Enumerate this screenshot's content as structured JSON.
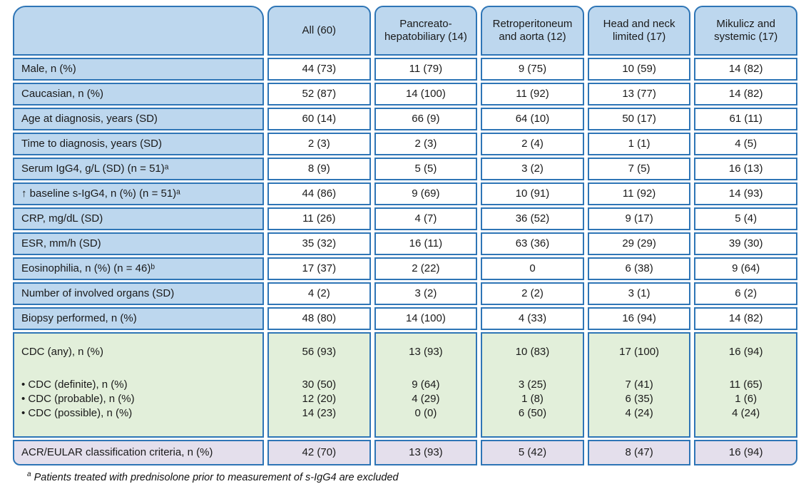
{
  "chart_data": {
    "type": "table",
    "columns": [
      "All (60)",
      "Pancreato-hepatobiliary (14)",
      "Retroperitoneum and aorta (12)",
      "Head and neck limited (17)",
      "Mikulicz and systemic (17)"
    ],
    "rows": [
      {
        "label": "Male, n (%)",
        "values": [
          "44 (73)",
          "11 (79)",
          "9 (75)",
          "10 (59)",
          "14 (82)"
        ]
      },
      {
        "label": "Caucasian, n (%)",
        "values": [
          "52 (87)",
          "14 (100)",
          "11 (92)",
          "13 (77)",
          "14 (82)"
        ]
      },
      {
        "label": "Age at diagnosis, years (SD)",
        "values": [
          "60 (14)",
          "66 (9)",
          "64 (10)",
          "50 (17)",
          "61 (11)"
        ]
      },
      {
        "label": "Time to diagnosis, years (SD)",
        "values": [
          "2 (3)",
          "2 (3)",
          "2 (4)",
          "1 (1)",
          "4 (5)"
        ]
      },
      {
        "label": "Serum IgG4, g/L (SD) (n = 51)ᵃ",
        "values": [
          "8 (9)",
          "5 (5)",
          "3 (2)",
          "7 (5)",
          "16 (13)"
        ]
      },
      {
        "label": "↑ baseline s-IgG4, n (%) (n = 51)ᵃ",
        "values": [
          "44 (86)",
          "9 (69)",
          "10 (91)",
          "11 (92)",
          "14 (93)"
        ]
      },
      {
        "label": "CRP, mg/dL (SD)",
        "values": [
          "11 (26)",
          "4 (7)",
          "36 (52)",
          "9 (17)",
          "5 (4)"
        ]
      },
      {
        "label": "ESR, mm/h (SD)",
        "values": [
          "35 (32)",
          "16 (11)",
          "63 (36)",
          "29 (29)",
          "39 (30)"
        ]
      },
      {
        "label": "Eosinophilia, n (%) (n = 46)ᵇ",
        "values": [
          "17 (37)",
          "2 (22)",
          "0",
          "6 (38)",
          "9 (64)"
        ]
      },
      {
        "label": "Number of involved organs (SD)",
        "values": [
          "4 (2)",
          "3 (2)",
          "2 (2)",
          "3 (1)",
          "6 (2)"
        ]
      },
      {
        "label": "Biopsy performed, n (%)",
        "values": [
          "48 (80)",
          "14 (100)",
          "4 (33)",
          "16 (94)",
          "14 (82)"
        ]
      }
    ],
    "cdc_lines": [
      {
        "label": "CDC (any), n (%)",
        "values": [
          "56 (93)",
          "13 (93)",
          "10 (83)",
          "17 (100)",
          "16 (94)"
        ]
      },
      {
        "label": "",
        "values": [
          "",
          "",
          "",
          "",
          ""
        ]
      },
      {
        "label": "• CDC (definite), n (%)",
        "values": [
          "30 (50)",
          "9 (64)",
          "3 (25)",
          "7 (41)",
          "11 (65)"
        ]
      },
      {
        "label": "• CDC (probable), n (%)",
        "values": [
          "12 (20)",
          "4 (29)",
          "1 (8)",
          "6 (35)",
          "1 (6)"
        ]
      },
      {
        "label": "• CDC (possible), n (%)",
        "values": [
          "14 (23)",
          "0 (0)",
          "6 (50)",
          "4 (24)",
          "4 (24)"
        ]
      }
    ],
    "acr_row": {
      "label": "ACR/EULAR classification criteria, n (%)",
      "values": [
        "42 (70)",
        "13 (93)",
        "5 (42)",
        "8 (47)",
        "16 (94)"
      ]
    },
    "footnote": {
      "marker": "a",
      "text": "Patients treated with prednisolone prior to measurement of s-IgG4 are excluded"
    }
  },
  "colors": {
    "border": "#2E75B6",
    "header_fill": "#BDD7EE",
    "label_fill": "#BDD7EE",
    "cdc_fill": "#E2EFDA",
    "acr_fill": "#E4DFEC",
    "text": "#1A1A1A"
  }
}
